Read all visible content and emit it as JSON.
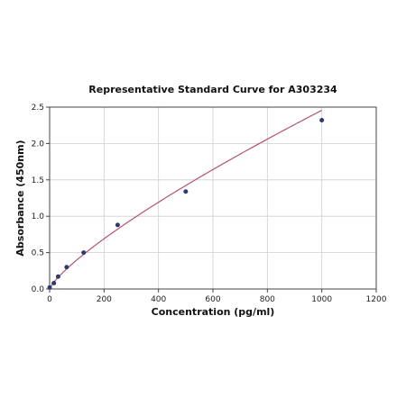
{
  "chart_data": {
    "type": "scatter",
    "title": "Representative Standard Curve for A303234",
    "xlabel": "Concentration (pg/ml)",
    "ylabel": "Absorbance (450nm)",
    "xlim": [
      0,
      1200
    ],
    "ylim": [
      0,
      2.5
    ],
    "xticks": [
      "0",
      "200",
      "400",
      "600",
      "800",
      "1000",
      "1200"
    ],
    "yticks": [
      "0.0",
      "0.5",
      "1.0",
      "1.5",
      "2.0",
      "2.5"
    ],
    "grid": true,
    "series": [
      {
        "points": [
          {
            "x": 0,
            "y": 0.02
          },
          {
            "x": 15.6,
            "y": 0.08
          },
          {
            "x": 31.25,
            "y": 0.17
          },
          {
            "x": 62.5,
            "y": 0.3
          },
          {
            "x": 125,
            "y": 0.5
          },
          {
            "x": 250,
            "y": 0.88
          },
          {
            "x": 500,
            "y": 1.34
          },
          {
            "x": 1000,
            "y": 2.32
          }
        ],
        "fit": "curve",
        "point_color": "#2e3a6e",
        "line_color": "#b5546b"
      }
    ]
  }
}
